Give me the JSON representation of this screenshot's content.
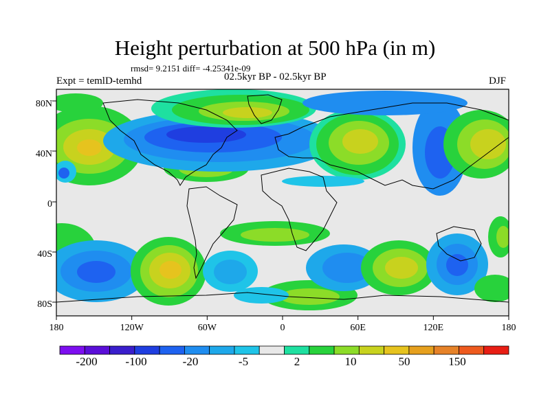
{
  "title": "Height perturbation at 500 hPa (in m)",
  "stats": "rmsd= 9.2151 diff= -4.25341e-09",
  "experiment": "Expt = temlD-temhd",
  "period": "02.5kyr BP - 02.5kyr BP",
  "season": "DJF",
  "lat_ticks": [
    "80N",
    "40N",
    "0",
    "40S",
    "80S"
  ],
  "lon_ticks": [
    "180",
    "120W",
    "60W",
    "0",
    "60E",
    "120E",
    "180"
  ],
  "colorbar": {
    "labels": [
      "-200",
      "-100",
      "-20",
      "-5",
      "2",
      "10",
      "50",
      "150"
    ],
    "colors": [
      "#7d0ef0",
      "#5a0ed8",
      "#3a1ecc",
      "#1f3ee0",
      "#1e62f0",
      "#1f8df0",
      "#1ea8ea",
      "#1fc4e8",
      "#e8e8e8",
      "#1ee0a0",
      "#28d23c",
      "#8cdc28",
      "#c8d21e",
      "#e6c31e",
      "#e6a01e",
      "#e68228",
      "#ee5a1e",
      "#e81e14"
    ]
  },
  "palette": {
    "neutral": "#e8e8e8",
    "green": "#28d23c",
    "lime": "#8cdc28",
    "yellow": "#c8d21e",
    "gold": "#e6c31e",
    "teal": "#1ee0a0",
    "cyan": "#1fc4e8",
    "sky": "#1ea8ea",
    "blue": "#1f8df0",
    "deep": "#1e62f0",
    "navy": "#1f3ee0"
  }
}
